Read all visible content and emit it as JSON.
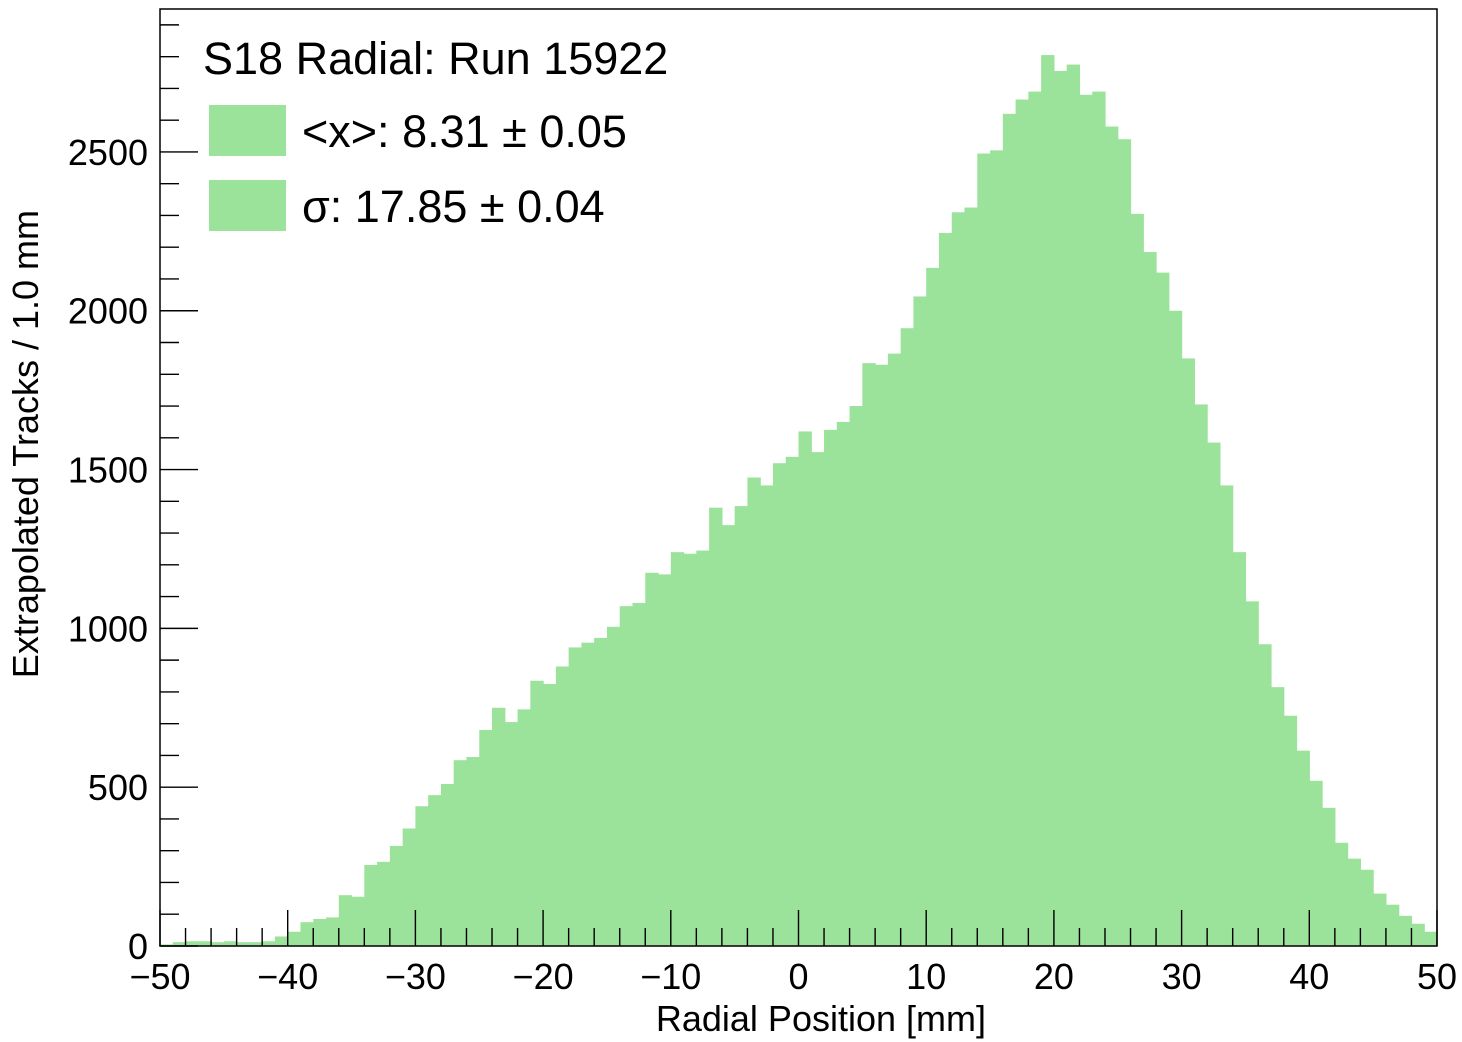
{
  "chart_data": {
    "type": "bar",
    "title": "",
    "xlabel": "Radial Position [mm]",
    "ylabel": "Extrapolated Tracks / 1.0 mm",
    "xlim": [
      -50,
      50
    ],
    "ylim": [
      0,
      2950
    ],
    "bin_width": 1.0,
    "bar_color": "#9be29b",
    "grid": false,
    "legend_position": "top-left",
    "legend": {
      "title": "S18 Radial: Run 15922",
      "entries": [
        {
          "label": "<x>: 8.31 ± 0.05"
        },
        {
          "label": "σ: 17.85 ± 0.04"
        }
      ]
    },
    "x_ticks": [
      "−50",
      "−40",
      "−30",
      "−20",
      "−10",
      "0",
      "10",
      "20",
      "30",
      "40",
      "50"
    ],
    "y_ticks": [
      "0",
      "500",
      "1000",
      "1500",
      "2000",
      "2500"
    ],
    "bin_low_edges": [
      -50,
      -49,
      -48,
      -47,
      -46,
      -45,
      -44,
      -43,
      -42,
      -41,
      -40,
      -39,
      -38,
      -37,
      -36,
      -35,
      -34,
      -33,
      -32,
      -31,
      -30,
      -29,
      -28,
      -27,
      -26,
      -25,
      -24,
      -23,
      -22,
      -21,
      -20,
      -19,
      -18,
      -17,
      -16,
      -15,
      -14,
      -13,
      -12,
      -11,
      -10,
      -9,
      -8,
      -7,
      -6,
      -5,
      -4,
      -3,
      -2,
      -1,
      0,
      1,
      2,
      3,
      4,
      5,
      6,
      7,
      8,
      9,
      10,
      11,
      12,
      13,
      14,
      15,
      16,
      17,
      18,
      19,
      20,
      21,
      22,
      23,
      24,
      25,
      26,
      27,
      28,
      29,
      30,
      31,
      32,
      33,
      34,
      35,
      36,
      37,
      38,
      39,
      40,
      41,
      42,
      43,
      44,
      45,
      46,
      47,
      48,
      49
    ],
    "values": [
      5,
      12,
      15,
      15,
      12,
      15,
      12,
      12,
      15,
      30,
      45,
      75,
      85,
      90,
      160,
      155,
      255,
      265,
      315,
      370,
      440,
      475,
      510,
      585,
      595,
      680,
      750,
      705,
      745,
      835,
      825,
      880,
      940,
      955,
      970,
      1005,
      1070,
      1080,
      1175,
      1170,
      1240,
      1235,
      1245,
      1380,
      1325,
      1385,
      1475,
      1450,
      1520,
      1540,
      1620,
      1555,
      1625,
      1650,
      1700,
      1835,
      1830,
      1865,
      1945,
      2045,
      2135,
      2245,
      2310,
      2325,
      2495,
      2505,
      2620,
      2665,
      2690,
      2805,
      2755,
      2775,
      2680,
      2690,
      2580,
      2540,
      2305,
      2185,
      2120,
      2000,
      1850,
      1705,
      1585,
      1450,
      1240,
      1085,
      950,
      815,
      725,
      615,
      520,
      435,
      325,
      275,
      240,
      165,
      130,
      95,
      70,
      45
    ]
  }
}
